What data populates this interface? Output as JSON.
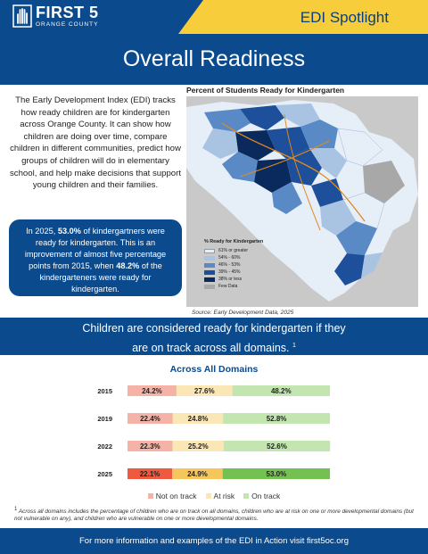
{
  "header": {
    "logo_big": "FIRST 5",
    "logo_small": "ORANGE COUNTY",
    "spotlight": "EDI Spotlight",
    "title": "Overall Readiness"
  },
  "intro": {
    "text": "The Early Development Index (EDI) tracks how ready children are for kindergarten across Orange County. It can show how children are doing over time, compare children in different communities, predict how groups of children will do in elementary school, and help make decisions that support young children and their families."
  },
  "callout": {
    "p1": "In 2025, ",
    "v1": "53.0%",
    "p2": " of kindergartners were ready for kindergarten. This is an improvement of almost five percentage points from 2015, when ",
    "v2": "48.2%",
    "p3": " of the kindergarteners were ready for kindergarten."
  },
  "map": {
    "title": "Percent of Students Ready for Kindergarten",
    "legend_title": "% Ready for Kindergarten",
    "legend": [
      {
        "label": "61% or greater",
        "color": "#e6eef8"
      },
      {
        "label": "54% - 60%",
        "color": "#a9c3e3"
      },
      {
        "label": "46% - 53%",
        "color": "#5a8ac6"
      },
      {
        "label": "39% - 45%",
        "color": "#1d4f9b"
      },
      {
        "label": "38% or less",
        "color": "#0a2a5e"
      },
      {
        "label": "Few Data",
        "color": "#a8a8a8"
      }
    ],
    "source": "Source: Early Development Data, 2025"
  },
  "band": {
    "line1": "Children are considered ready for kindergarten if they",
    "line2": "are on track across all domains.",
    "sup": "1"
  },
  "chart_data": {
    "type": "bar",
    "title": "Across All Domains",
    "categories": [
      "2015",
      "2019",
      "2022",
      "2025"
    ],
    "series": [
      {
        "name": "Not on track",
        "values": [
          24.2,
          22.4,
          22.3,
          22.1
        ],
        "labels": [
          "24.2%",
          "22.4%",
          "22.3%",
          "22.1%"
        ],
        "colors": [
          "#f5b3a8",
          "#f5b3a8",
          "#f5b3a8",
          "#ee5a3f"
        ]
      },
      {
        "name": "At risk",
        "values": [
          27.6,
          24.8,
          25.2,
          24.9
        ],
        "labels": [
          "27.6%",
          "24.8%",
          "25.2%",
          "24.9%"
        ],
        "colors": [
          "#fbe7b5",
          "#fbe7b5",
          "#fbe7b5",
          "#f5c65c"
        ]
      },
      {
        "name": "On track",
        "values": [
          48.2,
          52.8,
          52.6,
          53.0
        ],
        "labels": [
          "48.2%",
          "52.8%",
          "52.6%",
          "53.0%"
        ],
        "colors": [
          "#c3e6b0",
          "#c3e6b0",
          "#c3e6b0",
          "#74c151"
        ]
      }
    ],
    "stacked": true,
    "orientation": "horizontal",
    "legend_position": "bottom"
  },
  "legend_colors": {
    "not_on_track": "#f5b3a8",
    "at_risk": "#fbe7b5",
    "on_track": "#c3e6b0"
  },
  "footnote": {
    "sup": "1",
    "text": "Across all domains includes the percentage of children who are on track on all domains, children who are at risk on one or more developmental domains (but not vulnerable on any), and children who are vulnerable on one or more developmental domains."
  },
  "footer": {
    "text": "For more information and examples of the EDI in Action visit first5oc.org"
  }
}
